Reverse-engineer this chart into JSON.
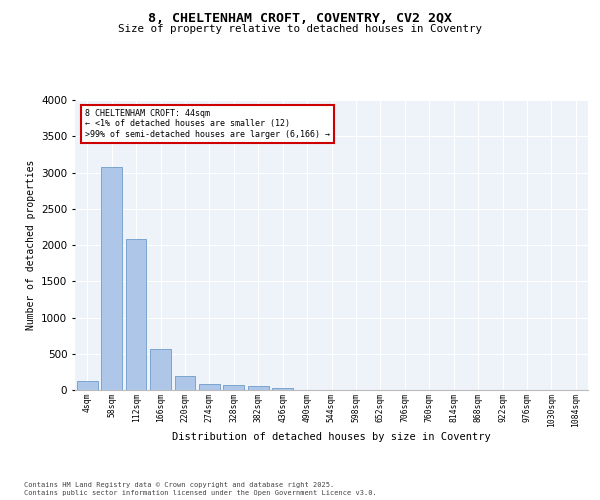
{
  "title1": "8, CHELTENHAM CROFT, COVENTRY, CV2 2QX",
  "title2": "Size of property relative to detached houses in Coventry",
  "xlabel": "Distribution of detached houses by size in Coventry",
  "ylabel": "Number of detached properties",
  "footer1": "Contains HM Land Registry data © Crown copyright and database right 2025.",
  "footer2": "Contains public sector information licensed under the Open Government Licence v3.0.",
  "annotation_title": "8 CHELTENHAM CROFT: 44sqm",
  "annotation_line2": "← <1% of detached houses are smaller (12)",
  "annotation_line3": ">99% of semi-detached houses are larger (6,166) →",
  "bar_labels": [
    "4sqm",
    "58sqm",
    "112sqm",
    "166sqm",
    "220sqm",
    "274sqm",
    "328sqm",
    "382sqm",
    "436sqm",
    "490sqm",
    "544sqm",
    "598sqm",
    "652sqm",
    "706sqm",
    "760sqm",
    "814sqm",
    "868sqm",
    "922sqm",
    "976sqm",
    "1030sqm",
    "1084sqm"
  ],
  "bar_values": [
    120,
    3080,
    2080,
    560,
    195,
    80,
    65,
    50,
    30,
    5,
    2,
    1,
    0,
    0,
    0,
    0,
    0,
    0,
    0,
    0,
    0
  ],
  "bar_color": "#aec6e8",
  "bar_edge_color": "#5a8fc2",
  "annotation_box_color": "#ffffff",
  "annotation_box_edge": "#cc0000",
  "background_color": "#ffffff",
  "plot_background": "#eef2f9",
  "grid_color": "#ffffff",
  "ylim": [
    0,
    4000
  ],
  "yticks": [
    0,
    500,
    1000,
    1500,
    2000,
    2500,
    3000,
    3500,
    4000
  ]
}
